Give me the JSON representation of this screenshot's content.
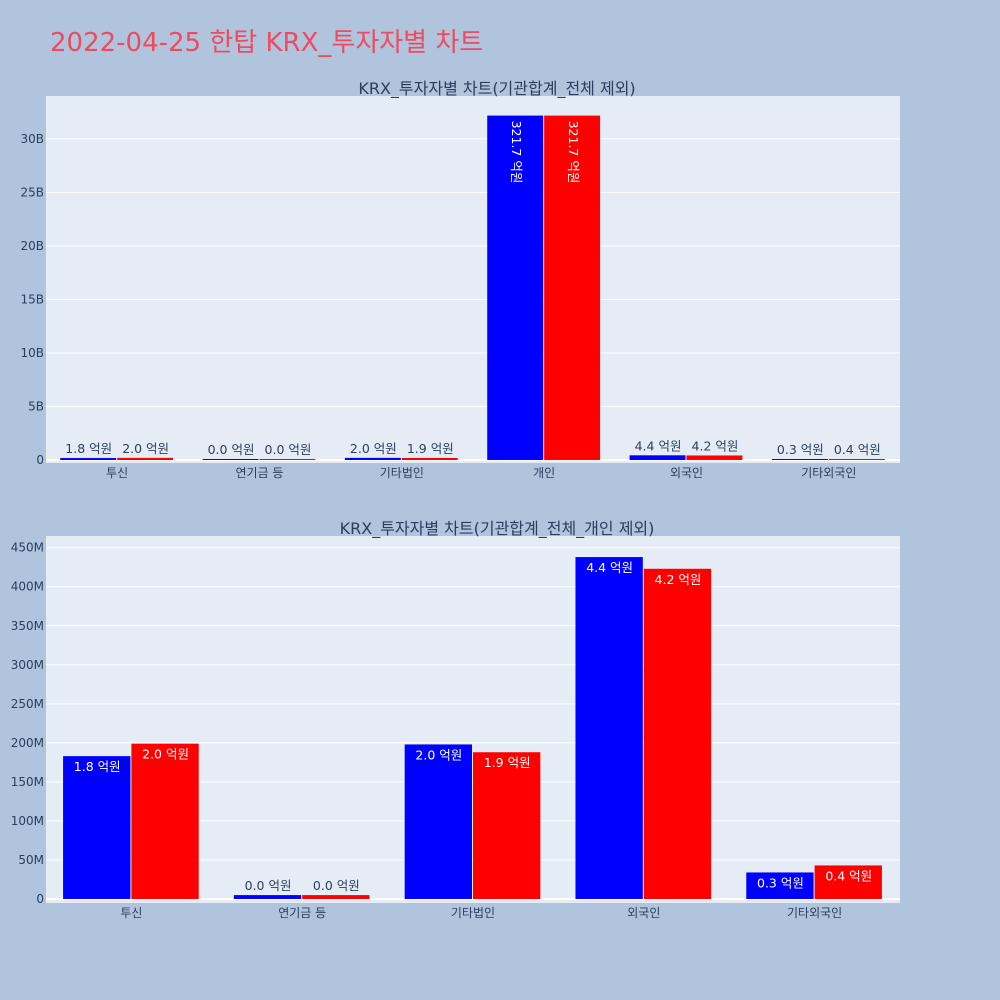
{
  "page": {
    "title": "2022-04-25 한탑 KRX_투자자별 차트"
  },
  "colors": {
    "series_a": "#0000ff",
    "series_b": "#ff0000",
    "plot_bg": "#e5ecf6",
    "page_bg": "#b0c4de",
    "title": "#ef4a5f",
    "text": "#2a3f5f"
  },
  "chart_data": [
    {
      "type": "bar",
      "title": "KRX_투자자별 차트(기관합계_전체 제외)",
      "categories": [
        "투신",
        "연기금 등",
        "기타법인",
        "개인",
        "외국인",
        "기타외국인"
      ],
      "series": [
        {
          "values": [
            183000000,
            5000000,
            198000000,
            32170000000,
            438000000,
            34000000
          ],
          "labels": [
            "1.8 억원",
            "0.0 억원",
            "2.0 억원",
            "321.7 억원",
            "4.4 억원",
            "0.3 억원"
          ]
        },
        {
          "values": [
            199000000,
            5000000,
            188000000,
            32170000000,
            423000000,
            43000000
          ],
          "labels": [
            "2.0 억원",
            "0.0 억원",
            "1.9 억원",
            "321.7 억원",
            "4.2 억원",
            "0.4 억원"
          ]
        }
      ],
      "ylim": [
        0,
        34000000000
      ],
      "yticks": [
        0,
        5000000000,
        10000000000,
        15000000000,
        20000000000,
        25000000000,
        30000000000
      ],
      "yticklabels": [
        "0",
        "5B",
        "10B",
        "15B",
        "20B",
        "25B",
        "30B"
      ],
      "text_position": "auto",
      "grid": true,
      "legend": "none"
    },
    {
      "type": "bar",
      "title": "KRX_투자자별 차트(기관합계_전체_개인 제외)",
      "categories": [
        "투신",
        "연기금 등",
        "기타법인",
        "외국인",
        "기타외국인"
      ],
      "series": [
        {
          "values": [
            183000000,
            5000000,
            198000000,
            438000000,
            34000000
          ],
          "labels": [
            "1.8 억원",
            "0.0 억원",
            "2.0 억원",
            "4.4 억원",
            "0.3 억원"
          ]
        },
        {
          "values": [
            199000000,
            5000000,
            188000000,
            423000000,
            43000000
          ],
          "labels": [
            "2.0 억원",
            "0.0 억원",
            "1.9 억원",
            "4.2 억원",
            "0.4 억원"
          ]
        }
      ],
      "ylim": [
        0,
        465000000
      ],
      "yticks": [
        0,
        50000000,
        100000000,
        150000000,
        200000000,
        250000000,
        300000000,
        350000000,
        400000000,
        450000000
      ],
      "yticklabels": [
        "0",
        "50M",
        "100M",
        "150M",
        "200M",
        "250M",
        "300M",
        "350M",
        "400M",
        "450M"
      ],
      "text_position": "inside",
      "grid": true,
      "legend": "none"
    }
  ]
}
